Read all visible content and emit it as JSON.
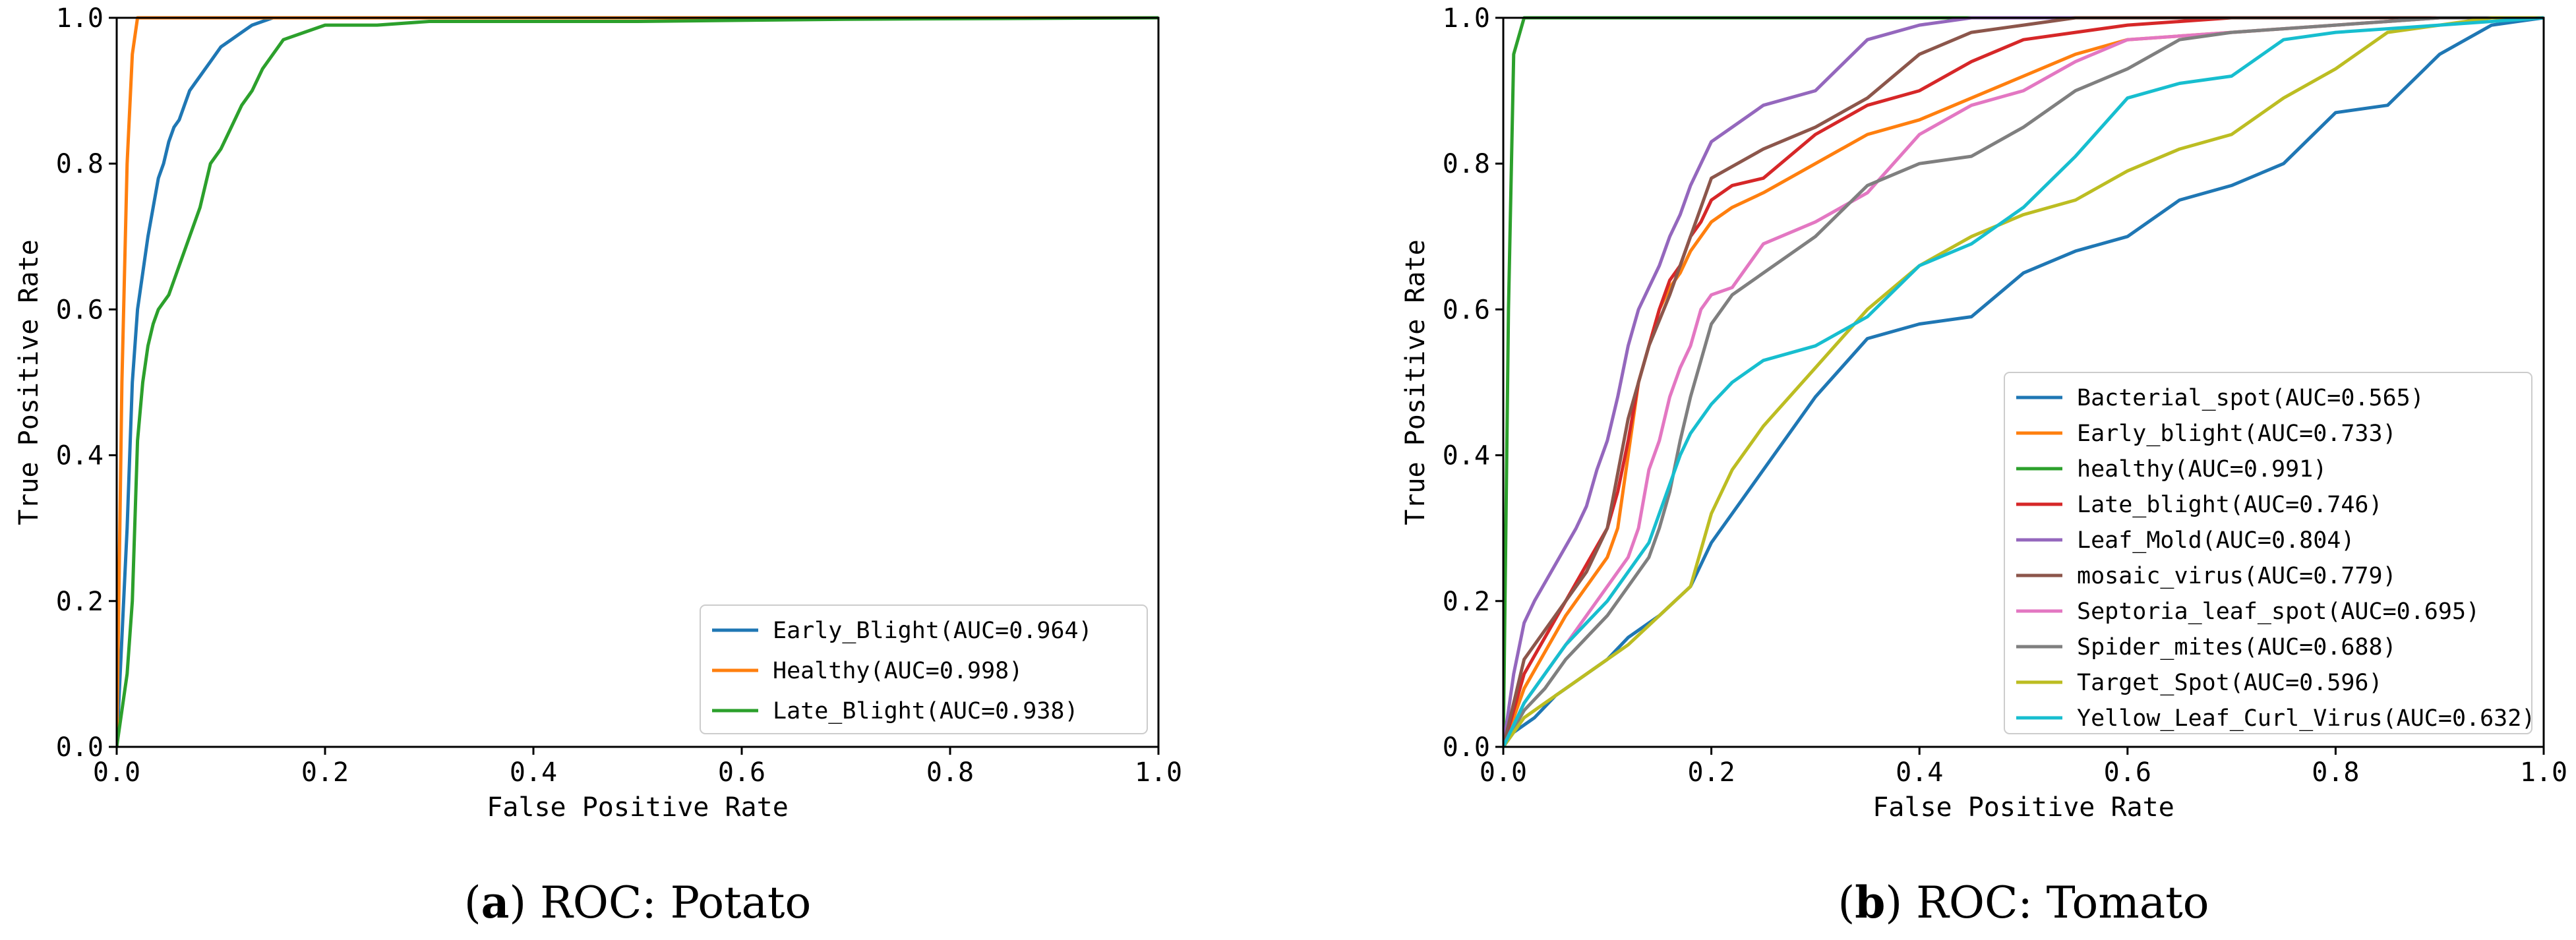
{
  "chart_data": [
    {
      "type": "line",
      "panel": "a",
      "caption": {
        "label": "a",
        "text": "ROC: Potato"
      },
      "xlabel": "False Positive Rate",
      "ylabel": "True Positive Rate",
      "xlim": [
        0,
        1
      ],
      "ylim": [
        0,
        1
      ],
      "xticks": [
        "0.0",
        "0.2",
        "0.4",
        "0.6",
        "0.8",
        "1.0"
      ],
      "yticks": [
        "0.0",
        "0.2",
        "0.4",
        "0.6",
        "0.8",
        "1.0"
      ],
      "legend_position": "lower-right",
      "grid": false,
      "series": [
        {
          "name": "Early_Blight(AUC=0.964)",
          "color": "#1f77b4",
          "x": [
            0,
            0.005,
            0.01,
            0.015,
            0.02,
            0.025,
            0.03,
            0.035,
            0.04,
            0.045,
            0.05,
            0.055,
            0.06,
            0.065,
            0.07,
            0.075,
            0.08,
            0.085,
            0.09,
            0.095,
            0.1,
            0.11,
            0.12,
            0.13,
            0.14,
            0.15,
            0.2,
            0.3,
            0.5,
            1.0
          ],
          "y": [
            0,
            0.15,
            0.3,
            0.5,
            0.6,
            0.65,
            0.7,
            0.74,
            0.78,
            0.8,
            0.83,
            0.85,
            0.86,
            0.88,
            0.9,
            0.91,
            0.92,
            0.93,
            0.94,
            0.95,
            0.96,
            0.97,
            0.98,
            0.99,
            0.995,
            1.0,
            1.0,
            1.0,
            1.0,
            1.0
          ]
        },
        {
          "name": "Healthy(AUC=0.998)",
          "color": "#ff7f0e",
          "x": [
            0,
            0.005,
            0.01,
            0.015,
            0.02,
            1.0
          ],
          "y": [
            0,
            0.5,
            0.8,
            0.95,
            1.0,
            1.0
          ]
        },
        {
          "name": "Late_Blight(AUC=0.938)",
          "color": "#2ca02c",
          "x": [
            0,
            0.01,
            0.015,
            0.02,
            0.025,
            0.03,
            0.035,
            0.04,
            0.045,
            0.05,
            0.055,
            0.06,
            0.07,
            0.08,
            0.09,
            0.1,
            0.11,
            0.12,
            0.13,
            0.14,
            0.15,
            0.16,
            0.18,
            0.2,
            0.25,
            0.3,
            0.5,
            0.7,
            1.0
          ],
          "y": [
            0,
            0.1,
            0.2,
            0.42,
            0.5,
            0.55,
            0.58,
            0.6,
            0.61,
            0.62,
            0.64,
            0.66,
            0.7,
            0.74,
            0.8,
            0.82,
            0.85,
            0.88,
            0.9,
            0.93,
            0.95,
            0.97,
            0.98,
            0.99,
            0.99,
            0.995,
            0.995,
            0.998,
            1.0
          ]
        }
      ]
    },
    {
      "type": "line",
      "panel": "b",
      "caption": {
        "label": "b",
        "text": "ROC: Tomato"
      },
      "xlabel": "False Positive Rate",
      "ylabel": "True Positive Rate",
      "xlim": [
        0,
        1
      ],
      "ylim": [
        0,
        1
      ],
      "xticks": [
        "0.0",
        "0.2",
        "0.4",
        "0.6",
        "0.8",
        "1.0"
      ],
      "yticks": [
        "0.0",
        "0.2",
        "0.4",
        "0.6",
        "0.8",
        "1.0"
      ],
      "legend_position": "lower-right",
      "grid": false,
      "series": [
        {
          "name": "Bacterial_spot(AUC=0.565)",
          "color": "#1f77b4",
          "x": [
            0,
            0.01,
            0.02,
            0.03,
            0.05,
            0.07,
            0.1,
            0.12,
            0.15,
            0.18,
            0.2,
            0.22,
            0.25,
            0.3,
            0.35,
            0.4,
            0.45,
            0.5,
            0.55,
            0.6,
            0.65,
            0.7,
            0.75,
            0.8,
            0.85,
            0.9,
            0.95,
            1.0
          ],
          "y": [
            0,
            0.02,
            0.03,
            0.04,
            0.07,
            0.09,
            0.12,
            0.15,
            0.18,
            0.22,
            0.28,
            0.32,
            0.38,
            0.48,
            0.56,
            0.58,
            0.59,
            0.65,
            0.68,
            0.7,
            0.75,
            0.77,
            0.8,
            0.87,
            0.88,
            0.95,
            0.99,
            1.0
          ]
        },
        {
          "name": "Early_blight(AUC=0.733)",
          "color": "#ff7f0e",
          "x": [
            0,
            0.02,
            0.04,
            0.06,
            0.08,
            0.1,
            0.11,
            0.12,
            0.13,
            0.14,
            0.15,
            0.16,
            0.17,
            0.18,
            0.19,
            0.2,
            0.22,
            0.25,
            0.3,
            0.35,
            0.4,
            0.45,
            0.5,
            0.55,
            0.6,
            0.7,
            0.8,
            0.9,
            1.0
          ],
          "y": [
            0,
            0.08,
            0.13,
            0.18,
            0.22,
            0.26,
            0.3,
            0.4,
            0.5,
            0.55,
            0.6,
            0.63,
            0.65,
            0.68,
            0.7,
            0.72,
            0.74,
            0.76,
            0.8,
            0.84,
            0.86,
            0.89,
            0.92,
            0.95,
            0.97,
            0.98,
            0.99,
            1.0,
            1.0
          ]
        },
        {
          "name": "healthy(AUC=0.991)",
          "color": "#2ca02c",
          "x": [
            0,
            0.005,
            0.01,
            0.02,
            0.5,
            1.0
          ],
          "y": [
            0,
            0.6,
            0.95,
            1.0,
            1.0,
            1.0
          ]
        },
        {
          "name": "Late_blight(AUC=0.746)",
          "color": "#d62728",
          "x": [
            0,
            0.02,
            0.04,
            0.06,
            0.08,
            0.1,
            0.11,
            0.12,
            0.13,
            0.14,
            0.15,
            0.16,
            0.17,
            0.18,
            0.19,
            0.2,
            0.22,
            0.25,
            0.3,
            0.35,
            0.4,
            0.45,
            0.5,
            0.55,
            0.6,
            0.7,
            0.8,
            0.9,
            1.0
          ],
          "y": [
            0,
            0.1,
            0.15,
            0.2,
            0.25,
            0.3,
            0.35,
            0.42,
            0.5,
            0.55,
            0.6,
            0.64,
            0.66,
            0.7,
            0.72,
            0.75,
            0.77,
            0.78,
            0.84,
            0.88,
            0.9,
            0.94,
            0.97,
            0.98,
            0.99,
            1.0,
            1.0,
            1.0,
            1.0
          ]
        },
        {
          "name": "Leaf_Mold(AUC=0.804)",
          "color": "#9467bd",
          "x": [
            0,
            0.01,
            0.02,
            0.03,
            0.05,
            0.07,
            0.08,
            0.09,
            0.1,
            0.11,
            0.12,
            0.13,
            0.14,
            0.15,
            0.16,
            0.17,
            0.18,
            0.2,
            0.22,
            0.25,
            0.3,
            0.35,
            0.4,
            0.45,
            0.5,
            0.6,
            1.0
          ],
          "y": [
            0,
            0.1,
            0.17,
            0.2,
            0.25,
            0.3,
            0.33,
            0.38,
            0.42,
            0.48,
            0.55,
            0.6,
            0.63,
            0.66,
            0.7,
            0.73,
            0.77,
            0.83,
            0.85,
            0.88,
            0.9,
            0.97,
            0.99,
            1.0,
            1.0,
            1.0,
            1.0
          ]
        },
        {
          "name": "mosaic_virus(AUC=0.779)",
          "color": "#8c564b",
          "x": [
            0,
            0.02,
            0.05,
            0.08,
            0.1,
            0.12,
            0.14,
            0.16,
            0.18,
            0.2,
            0.25,
            0.3,
            0.35,
            0.4,
            0.45,
            0.5,
            0.55,
            0.6,
            0.7,
            0.8,
            0.9,
            1.0
          ],
          "y": [
            0,
            0.12,
            0.18,
            0.24,
            0.3,
            0.45,
            0.55,
            0.62,
            0.7,
            0.78,
            0.82,
            0.85,
            0.89,
            0.95,
            0.98,
            0.99,
            1.0,
            1.0,
            1.0,
            1.0,
            1.0,
            1.0
          ]
        },
        {
          "name": "Septoria_leaf_spot(AUC=0.695)",
          "color": "#e377c2",
          "x": [
            0,
            0.02,
            0.04,
            0.06,
            0.08,
            0.1,
            0.12,
            0.13,
            0.14,
            0.15,
            0.16,
            0.17,
            0.18,
            0.19,
            0.2,
            0.22,
            0.25,
            0.3,
            0.35,
            0.4,
            0.45,
            0.5,
            0.55,
            0.6,
            0.7,
            0.8,
            0.9,
            1.0
          ],
          "y": [
            0,
            0.06,
            0.1,
            0.14,
            0.18,
            0.22,
            0.26,
            0.3,
            0.38,
            0.42,
            0.48,
            0.52,
            0.55,
            0.6,
            0.62,
            0.63,
            0.69,
            0.72,
            0.76,
            0.84,
            0.88,
            0.9,
            0.94,
            0.97,
            0.98,
            0.99,
            1.0,
            1.0
          ]
        },
        {
          "name": "Spider_mites(AUC=0.688)",
          "color": "#7f7f7f",
          "x": [
            0,
            0.02,
            0.04,
            0.06,
            0.08,
            0.1,
            0.12,
            0.14,
            0.15,
            0.16,
            0.17,
            0.18,
            0.19,
            0.2,
            0.22,
            0.25,
            0.3,
            0.35,
            0.4,
            0.45,
            0.5,
            0.55,
            0.6,
            0.65,
            0.7,
            0.8,
            0.9,
            1.0
          ],
          "y": [
            0,
            0.05,
            0.08,
            0.12,
            0.15,
            0.18,
            0.22,
            0.26,
            0.3,
            0.35,
            0.42,
            0.48,
            0.53,
            0.58,
            0.62,
            0.65,
            0.7,
            0.77,
            0.8,
            0.81,
            0.85,
            0.9,
            0.93,
            0.97,
            0.98,
            0.99,
            1.0,
            1.0
          ]
        },
        {
          "name": "Target_Spot(AUC=0.596)",
          "color": "#bcbd22",
          "x": [
            0,
            0.02,
            0.04,
            0.06,
            0.08,
            0.1,
            0.12,
            0.15,
            0.18,
            0.2,
            0.22,
            0.25,
            0.3,
            0.35,
            0.4,
            0.45,
            0.5,
            0.55,
            0.6,
            0.65,
            0.7,
            0.75,
            0.8,
            0.85,
            0.9,
            0.95,
            1.0
          ],
          "y": [
            0,
            0.04,
            0.06,
            0.08,
            0.1,
            0.12,
            0.14,
            0.18,
            0.22,
            0.32,
            0.38,
            0.44,
            0.52,
            0.6,
            0.66,
            0.7,
            0.73,
            0.75,
            0.79,
            0.82,
            0.84,
            0.89,
            0.93,
            0.98,
            0.99,
            1.0,
            1.0
          ]
        },
        {
          "name": "Yellow_Leaf_Curl_Virus(AUC=0.632)",
          "color": "#17becf",
          "x": [
            0,
            0.02,
            0.04,
            0.06,
            0.08,
            0.1,
            0.12,
            0.14,
            0.15,
            0.16,
            0.17,
            0.18,
            0.19,
            0.2,
            0.22,
            0.25,
            0.3,
            0.35,
            0.4,
            0.45,
            0.5,
            0.55,
            0.6,
            0.65,
            0.7,
            0.75,
            0.8,
            0.9,
            1.0
          ],
          "y": [
            0,
            0.06,
            0.1,
            0.14,
            0.17,
            0.2,
            0.24,
            0.28,
            0.32,
            0.36,
            0.4,
            0.43,
            0.45,
            0.47,
            0.5,
            0.53,
            0.55,
            0.59,
            0.66,
            0.69,
            0.74,
            0.81,
            0.89,
            0.91,
            0.92,
            0.97,
            0.98,
            0.99,
            1.0
          ]
        }
      ]
    }
  ]
}
